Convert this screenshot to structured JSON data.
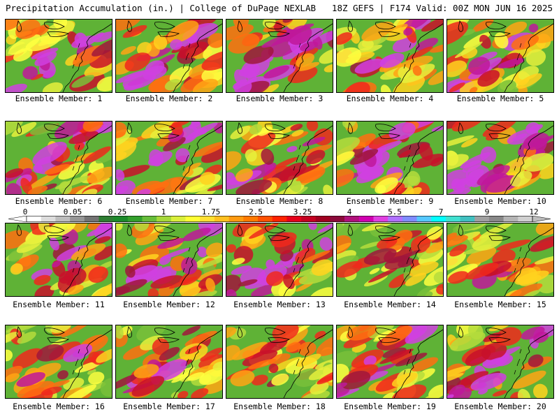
{
  "header": {
    "left": "Precipitation Accumulation (in.) | College of DuPage NEXLAB",
    "right": "18Z GEFS | F174 Valid: 00Z MON JUN 16 2025"
  },
  "panels": [
    {
      "label": "Ensemble Member: 1",
      "intensity": 0.55
    },
    {
      "label": "Ensemble Member: 2",
      "intensity": 0.6
    },
    {
      "label": "Ensemble Member: 3",
      "intensity": 0.8
    },
    {
      "label": "Ensemble Member: 4",
      "intensity": 0.5
    },
    {
      "label": "Ensemble Member: 5",
      "intensity": 0.45
    },
    {
      "label": "Ensemble Member: 6",
      "intensity": 0.55
    },
    {
      "label": "Ensemble Member: 7",
      "intensity": 0.75
    },
    {
      "label": "Ensemble Member: 8",
      "intensity": 0.5
    },
    {
      "label": "Ensemble Member: 9",
      "intensity": 0.7
    },
    {
      "label": "Ensemble Member: 10",
      "intensity": 0.7
    },
    {
      "label": "Ensemble Member: 11",
      "intensity": 0.6
    },
    {
      "label": "Ensemble Member: 12",
      "intensity": 0.6
    },
    {
      "label": "Ensemble Member: 13",
      "intensity": 0.65
    },
    {
      "label": "Ensemble Member: 14",
      "intensity": 0.3
    },
    {
      "label": "Ensemble Member: 15",
      "intensity": 0.4
    },
    {
      "label": "Ensemble Member: 16",
      "intensity": 0.4
    },
    {
      "label": "Ensemble Member: 17",
      "intensity": 0.45
    },
    {
      "label": "Ensemble Member: 18",
      "intensity": 0.4
    },
    {
      "label": "Ensemble Member: 19",
      "intensity": 0.5
    },
    {
      "label": "Ensemble Member: 20",
      "intensity": 0.6
    }
  ],
  "colorbar": {
    "tick_labels": [
      "0",
      "0.05",
      "0.25",
      "1",
      "1.75",
      "2.5",
      "3.25",
      "4",
      "5.5",
      "7",
      "9",
      "12"
    ],
    "colors": [
      "#ffffff",
      "#dcdcdc",
      "#bdbdbd",
      "#969696",
      "#737373",
      "#2e7d32",
      "#1b8a2a",
      "#33a02c",
      "#66bd3a",
      "#a6d83a",
      "#d9ef3a",
      "#ffff33",
      "#ffe033",
      "#ffc020",
      "#ff9a10",
      "#ff7a00",
      "#ff5000",
      "#ff2200",
      "#e6001a",
      "#c40020",
      "#a00020",
      "#8b0a3a",
      "#b0107a",
      "#d000b0",
      "#e040e0",
      "#b070ff",
      "#7f8cff",
      "#55c8ff",
      "#00ffff",
      "#40e0d0",
      "#40c0c0",
      "#a0a0a0",
      "#888888",
      "#b4b4b4",
      "#d0d0d0"
    ]
  }
}
